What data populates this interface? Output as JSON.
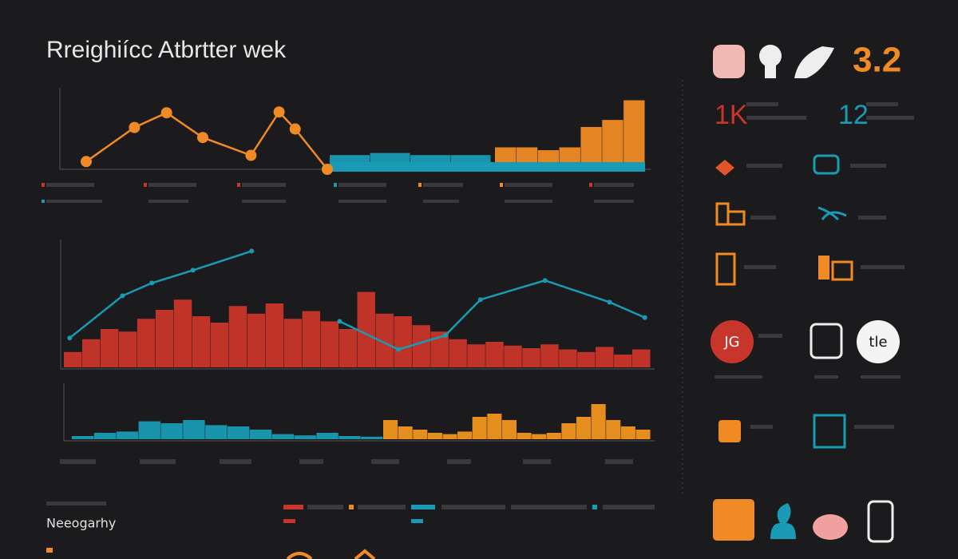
{
  "title": "Rreighiícc Atbrtter wek",
  "kpi": "3.2",
  "stats": [
    "1K",
    "12"
  ],
  "badges": [
    "JG",
    "tle"
  ],
  "footer_label": "Neeogarhy",
  "chart_data": [
    {
      "type": "line",
      "color": "#f08a24",
      "x": [
        0,
        6,
        10,
        14.5,
        20.5,
        24,
        26,
        30
      ],
      "values": [
        10,
        54,
        73,
        41,
        18,
        74,
        52,
        0
      ],
      "xlim": [
        0,
        30
      ],
      "ylim": [
        0,
        100
      ]
    },
    {
      "type": "bar",
      "ylim": [
        0,
        100
      ],
      "series": [
        {
          "color": "#1a9bb5",
          "values": [
            10,
            13,
            10,
            10
          ]
        },
        {
          "color": "#f08a24",
          "values": [
            21,
            21,
            17,
            21,
            50,
            60,
            88
          ]
        }
      ]
    },
    {
      "type": "bar",
      "ylim": [
        0,
        100
      ],
      "series": [
        {
          "color": "#c8352a",
          "values": [
            12,
            22,
            30,
            28,
            38,
            45,
            53,
            40,
            35,
            48,
            42,
            50,
            38,
            44,
            36,
            30,
            59,
            42,
            40,
            33,
            28,
            22,
            18,
            20,
            17,
            15,
            18,
            14,
            12,
            16,
            10,
            14
          ]
        }
      ]
    },
    {
      "type": "line",
      "color": "#1a9bb5",
      "x": [
        1,
        10,
        15,
        22,
        32,
        45,
        47,
        57,
        65,
        71,
        82,
        93,
        99
      ],
      "values": [
        23,
        56,
        66,
        76,
        91,
        null,
        36,
        14,
        25,
        53,
        68,
        51,
        39
      ],
      "xlim": [
        0,
        100
      ],
      "ylim": [
        0,
        100
      ]
    },
    {
      "type": "bar",
      "ylim": [
        0,
        100
      ],
      "series": [
        {
          "color": "#1a9bb5",
          "values": [
            5,
            10,
            12,
            28,
            25,
            30,
            22,
            20,
            15,
            8,
            6,
            10,
            5,
            4
          ]
        },
        {
          "color": "#f0941e",
          "values": [
            30,
            20,
            15,
            10,
            8,
            12,
            35,
            40,
            30,
            10,
            8,
            10,
            25,
            35,
            55,
            30,
            20,
            15
          ]
        }
      ]
    }
  ]
}
